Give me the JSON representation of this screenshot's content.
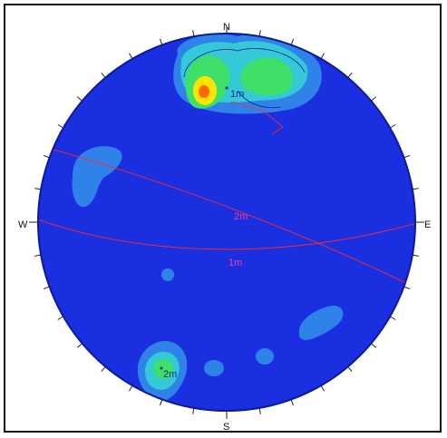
{
  "compass": {
    "north": "N",
    "south": "S",
    "east": "E",
    "west": "W"
  },
  "planes": [
    {
      "label": "2m"
    },
    {
      "label": "1m"
    }
  ],
  "poles": [
    {
      "label": "1m"
    },
    {
      "label": "2m"
    }
  ],
  "colors": {
    "background": "#1a2fe0",
    "rim": "#0d1a9a",
    "contour_low": "#2f83e8",
    "contour_mid": "#33c9d6",
    "contour_high": "#3fe06a",
    "peak": "#ffe400",
    "peak_core": "#ff6a00",
    "great_circle": "#ff2a2a",
    "label": "#ff3aa0"
  }
}
